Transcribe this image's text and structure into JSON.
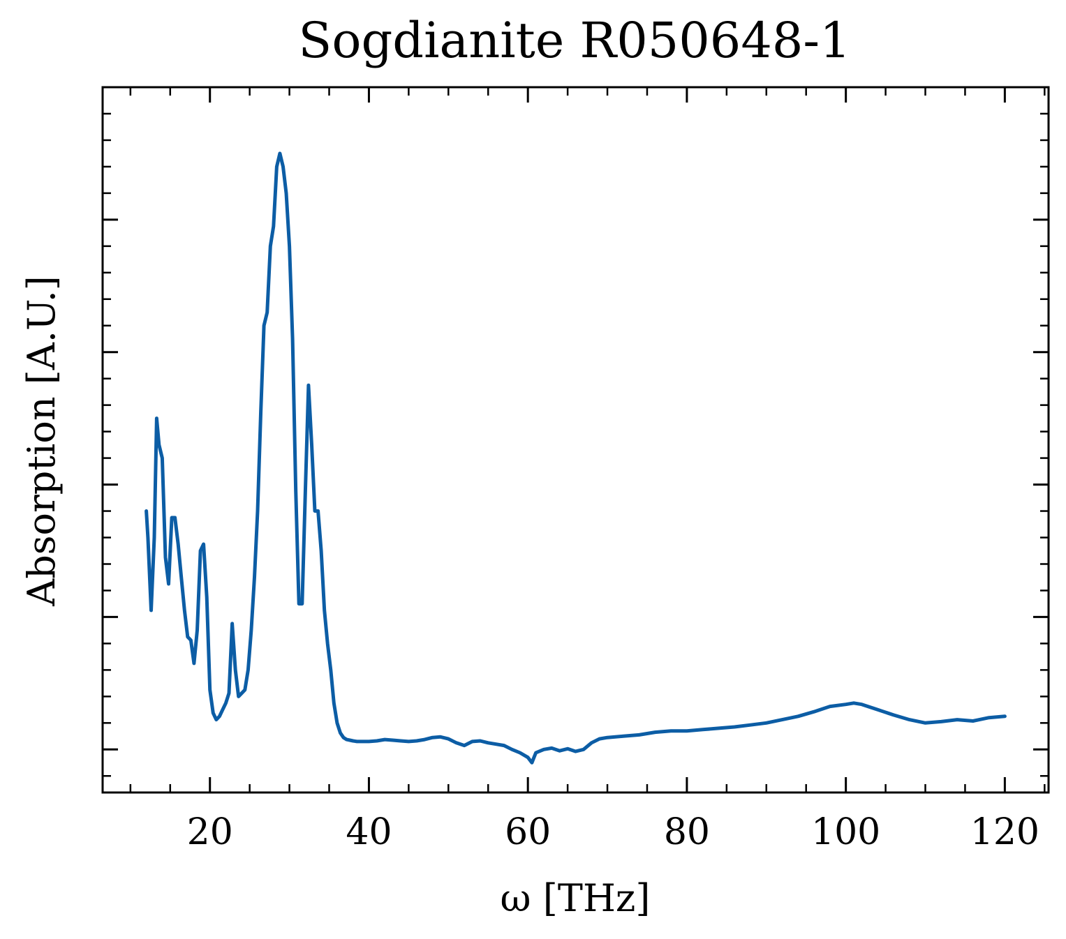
{
  "chart_data": {
    "type": "line",
    "title": "Sogdianite R050648-1",
    "xlabel": "ω [THz]",
    "ylabel": "Absorption [A.U.]",
    "xlim": [
      6.5,
      125.5
    ],
    "ylim": [
      -0.065,
      1.0
    ],
    "x_ticks": [
      20,
      40,
      60,
      80,
      100,
      120
    ],
    "x_tick_labels": [
      "20",
      "40",
      "60",
      "80",
      "100",
      "120"
    ],
    "y_ticks": [
      0.0,
      0.2,
      0.4,
      0.6,
      0.8
    ],
    "y_tick_labels": [
      "",
      "",
      "",
      "",
      ""
    ],
    "grid": false,
    "series_color": "#0C5DA5",
    "series": [
      {
        "x": [
          12.0,
          12.2,
          12.6,
          13.0,
          13.3,
          13.6,
          14.0,
          14.4,
          14.8,
          15.2,
          15.6,
          16.0,
          16.4,
          16.8,
          17.2,
          17.6,
          18.0,
          18.4,
          18.8,
          19.2,
          19.6,
          20.0,
          20.4,
          20.8,
          21.2,
          21.6,
          22.0,
          22.4,
          22.8,
          23.2,
          23.6,
          24.0,
          24.4,
          24.8,
          25.2,
          25.6,
          26.0,
          26.4,
          26.8,
          27.2,
          27.6,
          28.0,
          28.4,
          28.8,
          29.2,
          29.6,
          30.0,
          30.4,
          30.8,
          31.2,
          31.6,
          32.0,
          32.4,
          32.8,
          33.2,
          33.6,
          34.0,
          34.4,
          34.8,
          35.2,
          35.6,
          36.0,
          36.4,
          36.8,
          37.2,
          37.6,
          38.0,
          38.5,
          39.0,
          40,
          41,
          42,
          43,
          44,
          45,
          46,
          47,
          48,
          49,
          50,
          51,
          52,
          53,
          54,
          55,
          56,
          57,
          58,
          59,
          60,
          60.5,
          61,
          62,
          63,
          64,
          65,
          66,
          67,
          68,
          69,
          70,
          72,
          74,
          76,
          78,
          80,
          82,
          84,
          86,
          88,
          90,
          92,
          94,
          96,
          98,
          100,
          101,
          102,
          104,
          106,
          108,
          110,
          112,
          114,
          116,
          118,
          120
        ],
        "y": [
          0.36,
          0.32,
          0.21,
          0.32,
          0.5,
          0.46,
          0.44,
          0.29,
          0.25,
          0.35,
          0.35,
          0.31,
          0.26,
          0.21,
          0.17,
          0.165,
          0.13,
          0.18,
          0.3,
          0.31,
          0.23,
          0.09,
          0.055,
          0.045,
          0.05,
          0.06,
          0.07,
          0.085,
          0.19,
          0.12,
          0.08,
          0.085,
          0.09,
          0.12,
          0.18,
          0.26,
          0.36,
          0.51,
          0.64,
          0.66,
          0.76,
          0.79,
          0.88,
          0.9,
          0.88,
          0.84,
          0.76,
          0.62,
          0.39,
          0.22,
          0.22,
          0.39,
          0.55,
          0.46,
          0.36,
          0.36,
          0.3,
          0.21,
          0.16,
          0.12,
          0.07,
          0.04,
          0.025,
          0.018,
          0.015,
          0.014,
          0.013,
          0.012,
          0.012,
          0.012,
          0.013,
          0.015,
          0.014,
          0.013,
          0.012,
          0.013,
          0.015,
          0.018,
          0.019,
          0.016,
          0.01,
          0.006,
          0.012,
          0.013,
          0.01,
          0.008,
          0.006,
          0.0,
          -0.005,
          -0.012,
          -0.02,
          -0.005,
          0.0,
          0.002,
          -0.002,
          0.001,
          -0.003,
          0.0,
          0.01,
          0.016,
          0.018,
          0.02,
          0.022,
          0.026,
          0.028,
          0.028,
          0.03,
          0.032,
          0.034,
          0.037,
          0.04,
          0.045,
          0.05,
          0.057,
          0.065,
          0.068,
          0.07,
          0.068,
          0.06,
          0.052,
          0.045,
          0.04,
          0.042,
          0.045,
          0.043,
          0.048,
          0.05
        ]
      }
    ]
  }
}
